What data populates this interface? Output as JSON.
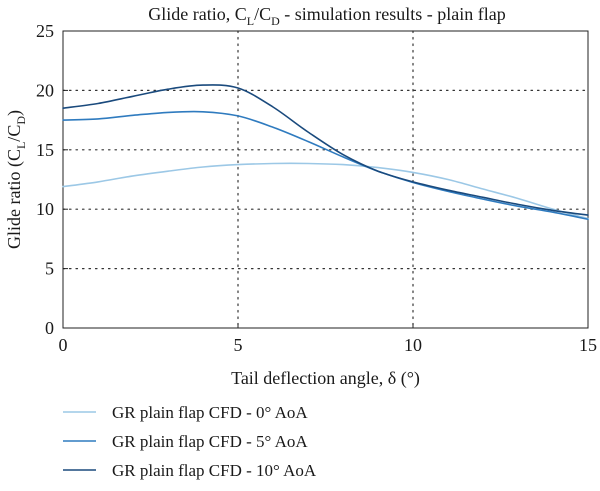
{
  "chart_data": {
    "type": "line",
    "title": "Glide ratio, C_L/C_D - simulation results - plain flap",
    "title_parts": [
      "Glide ratio, C",
      "L",
      "/C",
      "D",
      " - simulation results - plain flap"
    ],
    "xlabel": "Tail deflection angle, δ (°)",
    "ylabel": "Glide ratio (C_L/C_D)",
    "ylabel_parts": [
      "Glide ratio (C",
      "L",
      "/C",
      "D",
      ")"
    ],
    "xlim": [
      0,
      15
    ],
    "ylim": [
      0,
      25
    ],
    "x_ticks": [
      0,
      5,
      10,
      15
    ],
    "y_ticks": [
      0,
      5,
      10,
      15,
      20,
      25
    ],
    "x_tick_labels": [
      "0",
      "5",
      "10",
      "15"
    ],
    "y_tick_labels": [
      "0",
      "5",
      "10",
      "15",
      "20",
      "25"
    ],
    "grid": true,
    "legend_position": "bottom",
    "x": [
      0,
      1,
      2,
      3,
      4,
      5,
      6,
      7,
      8,
      9,
      10,
      11,
      12,
      13,
      14,
      15
    ],
    "series": [
      {
        "name": "GR plain flap CFD - 0° AoA",
        "color": "#9cc8e6",
        "values": [
          11.9,
          12.3,
          12.8,
          13.2,
          13.55,
          13.75,
          13.85,
          13.85,
          13.75,
          13.5,
          13.1,
          12.5,
          11.7,
          10.9,
          10.0,
          9.2
        ]
      },
      {
        "name": "GR plain flap CFD - 5° AoA",
        "color": "#2f7bbf",
        "values": [
          17.5,
          17.6,
          17.9,
          18.15,
          18.2,
          17.85,
          16.9,
          15.7,
          14.4,
          13.2,
          12.25,
          11.5,
          10.85,
          10.25,
          9.75,
          9.15
        ]
      },
      {
        "name": "GR plain flap CFD - 10° AoA",
        "color": "#1a4a7d",
        "values": [
          18.5,
          18.9,
          19.5,
          20.1,
          20.45,
          20.2,
          18.6,
          16.5,
          14.6,
          13.2,
          12.3,
          11.6,
          11.0,
          10.4,
          9.9,
          9.5
        ]
      }
    ]
  }
}
